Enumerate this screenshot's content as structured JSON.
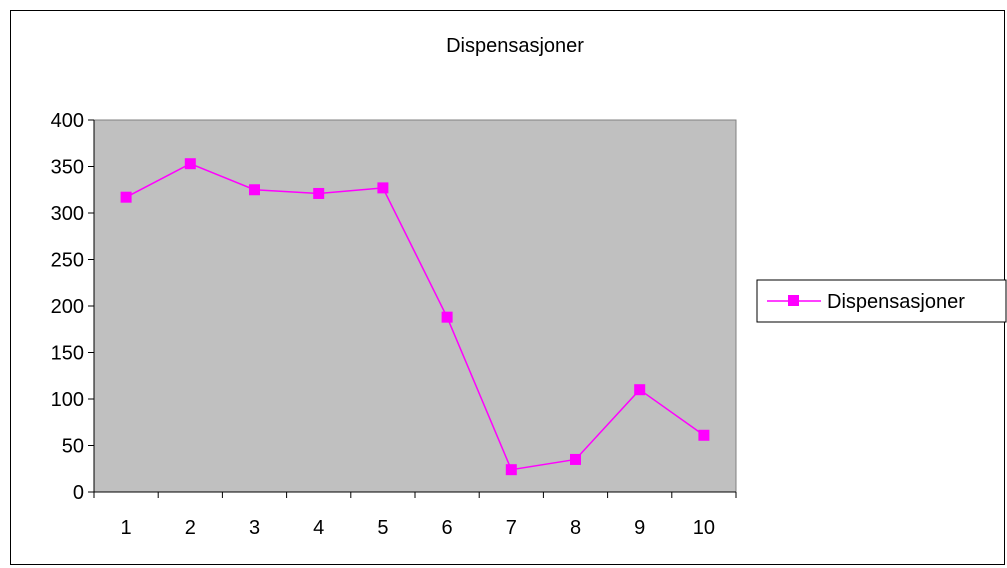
{
  "chart_data": {
    "type": "line",
    "title": "Dispensasjoner",
    "categories": [
      "1",
      "2",
      "3",
      "4",
      "5",
      "6",
      "7",
      "8",
      "9",
      "10"
    ],
    "series": [
      {
        "name": "Dispensasjoner",
        "values": [
          317,
          353,
          325,
          321,
          327,
          188,
          24,
          35,
          110,
          61
        ]
      }
    ],
    "ylim": [
      0,
      400
    ],
    "yticks": [
      "0",
      "50",
      "100",
      "150",
      "200",
      "250",
      "300",
      "350",
      "400"
    ],
    "grid": false,
    "legend": "right",
    "colors": {
      "series": "#ff00ff",
      "plot_background": "#c0c0c0"
    }
  }
}
